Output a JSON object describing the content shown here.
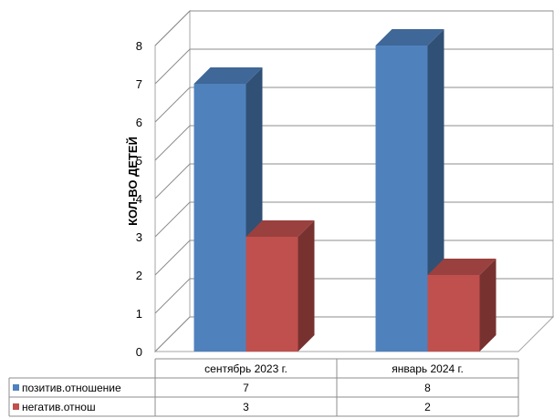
{
  "chart_data": {
    "type": "bar",
    "title": "",
    "xlabel": "",
    "ylabel": "КОЛ-ВО ДЕТЕЙ",
    "ylim": [
      0,
      8
    ],
    "yticks": [
      0,
      1,
      2,
      3,
      4,
      5,
      6,
      7,
      8
    ],
    "categories": [
      "сентябрь 2023 г.",
      "январь 2024 г."
    ],
    "series": [
      {
        "name": "позитив.отношение",
        "values": [
          7,
          8
        ],
        "color": "#4F81BD"
      },
      {
        "name": "негатив.отнош",
        "values": [
          3,
          2
        ],
        "color": "#C0504D"
      }
    ],
    "grid": true,
    "style": "3d-clustered-column",
    "legend": "data-table"
  }
}
